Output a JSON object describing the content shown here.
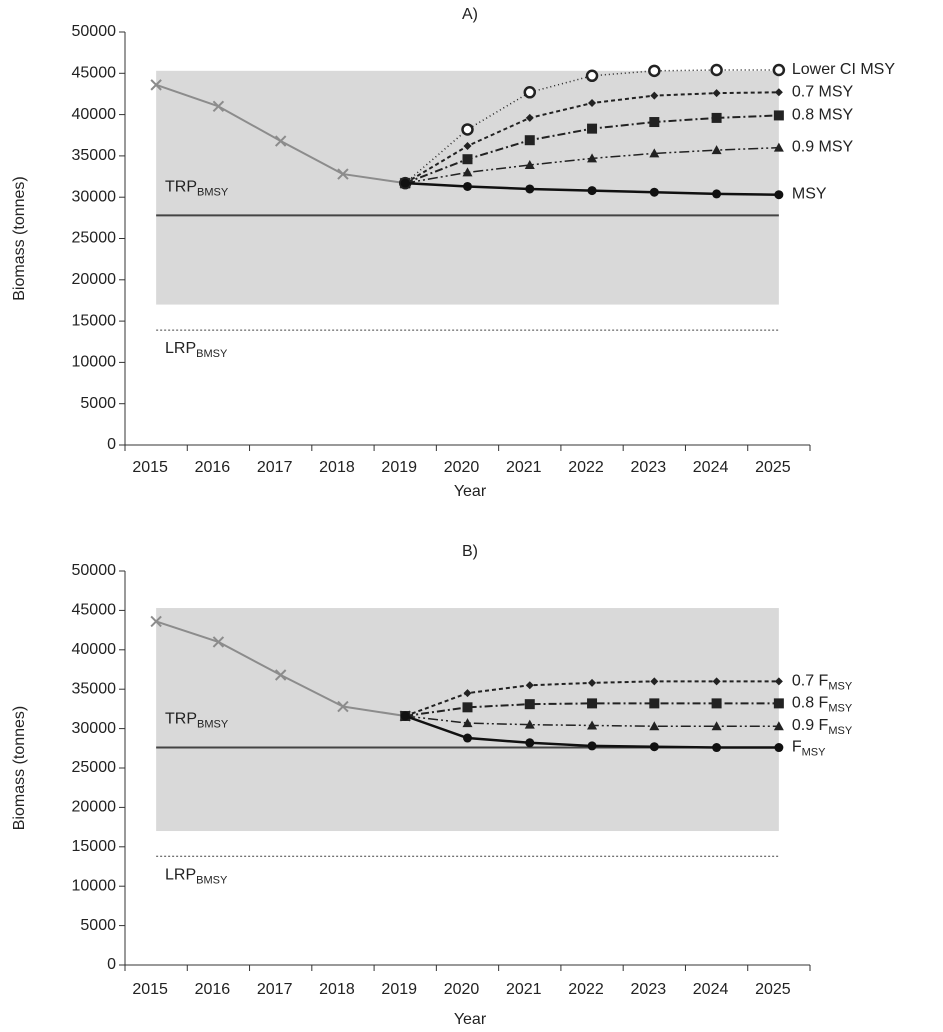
{
  "chart_data": [
    {
      "type": "line",
      "title": "A)",
      "x_label": "Year",
      "y_label": "Biomass (tonnes)",
      "categories": [
        "2015",
        "2016",
        "2017",
        "2018",
        "2019",
        "2020",
        "2021",
        "2022",
        "2023",
        "2024",
        "2025"
      ],
      "ylim": [
        0,
        50000
      ],
      "yticks": [
        0,
        5000,
        10000,
        15000,
        20000,
        25000,
        30000,
        35000,
        40000,
        45000,
        50000
      ],
      "shaded_band": [
        17000,
        45300
      ],
      "band_color": "#d9d9d9",
      "reference_lines": [
        {
          "value": 27800,
          "text": "TRP",
          "sub": "BMSY",
          "dash": "",
          "width": 2
        },
        {
          "value": 13900,
          "text": "LRP",
          "sub": "BMSY",
          "dash": "2,2",
          "width": 1
        }
      ],
      "series": [
        {
          "color": "#8c8c8c",
          "marker": "x",
          "dash": "",
          "width": 2,
          "values": [
            43600,
            41000,
            36800,
            32800,
            31700,
            null,
            null,
            null,
            null,
            null,
            null
          ]
        },
        {
          "name": "Lower CI MSY",
          "color": "#222",
          "marker": "open-circle",
          "dash": "1,3",
          "width": 1.5,
          "values": [
            null,
            null,
            null,
            null,
            31700,
            38200,
            42700,
            44700,
            45300,
            45400,
            45400
          ]
        },
        {
          "name": "0.7 MSY",
          "color": "#222",
          "marker": "diamond",
          "dash": "4,3",
          "width": 2,
          "values": [
            null,
            null,
            null,
            null,
            31700,
            36200,
            39600,
            41400,
            42300,
            42600,
            42700
          ]
        },
        {
          "name": "0.8 MSY",
          "color": "#222",
          "marker": "square",
          "dash": "8,3,2,3",
          "width": 2,
          "values": [
            null,
            null,
            null,
            null,
            31700,
            34600,
            36900,
            38300,
            39100,
            39600,
            39900
          ]
        },
        {
          "name": "0.9 MSY",
          "color": "#222",
          "marker": "triangle",
          "dash": "10,3,2,3,2,3",
          "width": 1.5,
          "values": [
            null,
            null,
            null,
            null,
            31700,
            33000,
            33900,
            34700,
            35300,
            35700,
            36000
          ]
        },
        {
          "name": "MSY",
          "color": "#111",
          "marker": "circle",
          "dash": "",
          "width": 2.5,
          "values": [
            null,
            null,
            null,
            null,
            31700,
            31300,
            31000,
            30800,
            30600,
            30400,
            30300
          ]
        }
      ]
    },
    {
      "type": "line",
      "title": "B)",
      "x_label": "Year",
      "y_label": "Biomass (tonnes)",
      "categories": [
        "2015",
        "2016",
        "2017",
        "2018",
        "2019",
        "2020",
        "2021",
        "2022",
        "2023",
        "2024",
        "2025"
      ],
      "ylim": [
        0,
        50000
      ],
      "yticks": [
        0,
        5000,
        10000,
        15000,
        20000,
        25000,
        30000,
        35000,
        40000,
        45000,
        50000
      ],
      "shaded_band": [
        17000,
        45300
      ],
      "band_color": "#d9d9d9",
      "reference_lines": [
        {
          "value": 27600,
          "text": "TRP",
          "sub": "BMSY",
          "dash": "",
          "width": 2
        },
        {
          "value": 13800,
          "text": "LRP",
          "sub": "BMSY",
          "dash": "2,2",
          "width": 1
        }
      ],
      "series": [
        {
          "color": "#8c8c8c",
          "marker": "x",
          "dash": "",
          "width": 2,
          "values": [
            43600,
            41000,
            36800,
            32800,
            31600,
            null,
            null,
            null,
            null,
            null,
            null
          ]
        },
        {
          "name": "0.7 F",
          "name_sub": "MSY",
          "color": "#222",
          "marker": "diamond",
          "dash": "4,3",
          "width": 2,
          "values": [
            null,
            null,
            null,
            null,
            31600,
            34500,
            35500,
            35800,
            36000,
            36000,
            36000
          ]
        },
        {
          "name": "0.8 F",
          "name_sub": "MSY",
          "color": "#222",
          "marker": "square",
          "dash": "8,3,2,3",
          "width": 2,
          "values": [
            null,
            null,
            null,
            null,
            31600,
            32700,
            33100,
            33200,
            33200,
            33200,
            33200
          ]
        },
        {
          "name": "0.9 F",
          "name_sub": "MSY",
          "color": "#222",
          "marker": "triangle",
          "dash": "10,3,2,3,2,3",
          "width": 1.5,
          "values": [
            null,
            null,
            null,
            null,
            31600,
            30700,
            30500,
            30400,
            30300,
            30300,
            30300
          ]
        },
        {
          "name": "F",
          "name_sub": "MSY",
          "color": "#111",
          "marker": "circle",
          "dash": "",
          "width": 2.5,
          "values": [
            null,
            null,
            null,
            null,
            31600,
            28800,
            28200,
            27800,
            27700,
            27600,
            27600
          ]
        }
      ]
    }
  ]
}
